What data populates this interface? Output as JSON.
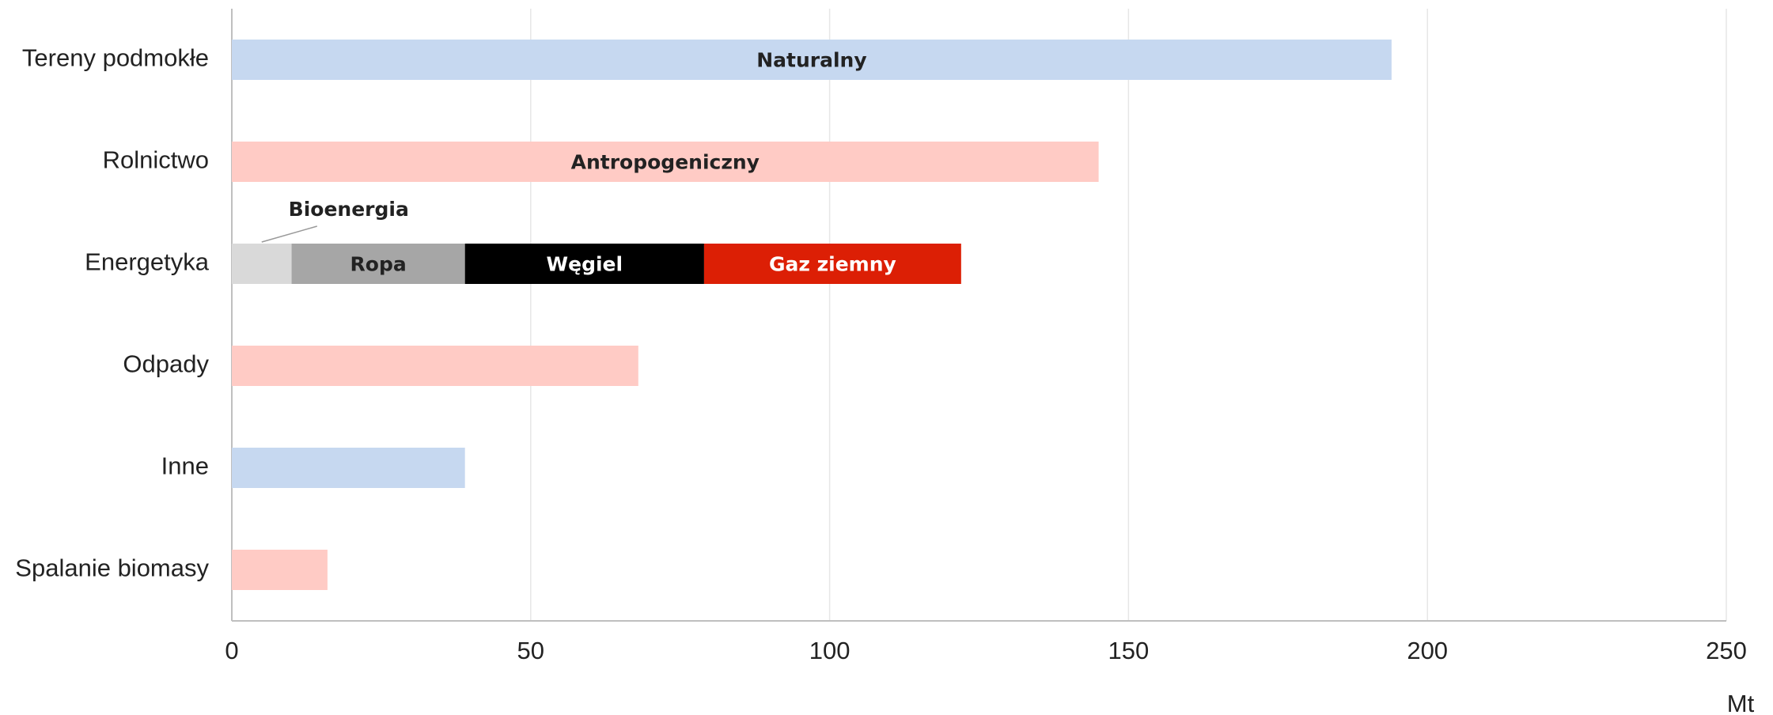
{
  "chart_data": {
    "type": "stacked-barh",
    "categories": [
      "Tereny podmokłe",
      "Rolnictwo",
      "Energetyka",
      "Odpady",
      "Inne",
      "Spalanie biomasy"
    ],
    "series": [
      {
        "name": "Naturalny",
        "color": "#c6d8f0",
        "values": [
          194,
          null,
          null,
          null,
          39,
          null
        ]
      },
      {
        "name": "Antropogeniczny",
        "color": "#ffcbc5",
        "values": [
          null,
          145,
          null,
          68,
          null,
          16
        ]
      },
      {
        "name": "Bioenergia",
        "color": "#d9d9d9",
        "values": [
          null,
          null,
          10,
          null,
          null,
          null
        ]
      },
      {
        "name": "Ropa",
        "color": "#a6a6a6",
        "values": [
          null,
          null,
          29,
          null,
          null,
          null
        ]
      },
      {
        "name": "Węgiel",
        "color": "#000000",
        "values": [
          null,
          null,
          40,
          null,
          null,
          null
        ]
      },
      {
        "name": "Gaz ziemny",
        "color": "#dc1f05",
        "values": [
          null,
          null,
          43,
          null,
          null,
          null
        ]
      }
    ],
    "xlabel": "Mt",
    "xlim": [
      0,
      250
    ],
    "xticks": [
      0,
      50,
      100,
      150,
      200,
      250
    ],
    "grid": true
  }
}
